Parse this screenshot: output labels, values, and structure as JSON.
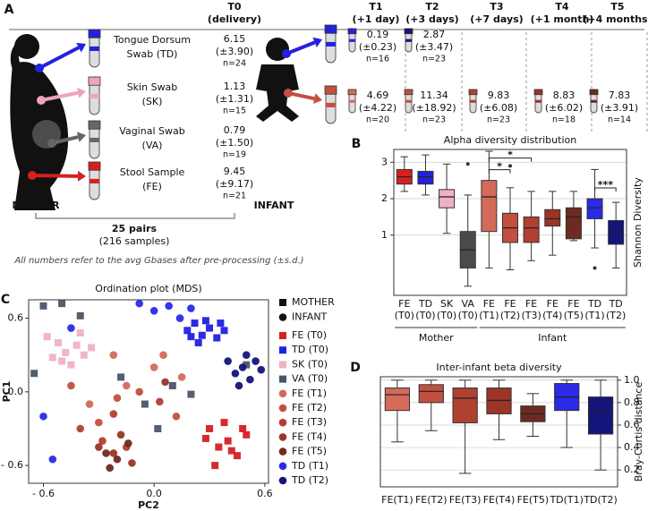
{
  "panel_a": {
    "label": "A",
    "baseline": {
      "name": "T0",
      "sub": "(delivery)"
    },
    "timepoints": [
      {
        "name": "T1",
        "sub": "(+1 day)"
      },
      {
        "name": "T2",
        "sub": "(+3 days)"
      },
      {
        "name": "T3",
        "sub": "(+7 days)"
      },
      {
        "name": "T4",
        "sub": "(+1 month)"
      },
      {
        "name": "T5",
        "sub": "(+4 months)"
      }
    ],
    "mother_samples": [
      {
        "lines": [
          "Tongue Dorsum",
          "Swab (TD)"
        ],
        "color": "#2222dd",
        "value": 6.15,
        "sd": "(±3.90)",
        "n": "n=24"
      },
      {
        "lines": [
          "Skin Swab",
          "(SK)"
        ],
        "color": "#eda4bc",
        "value": 1.13,
        "sd": "(±1.31)",
        "n": "n=15"
      },
      {
        "lines": [
          "Vaginal Swab",
          "(VA)"
        ],
        "color": "#666666",
        "value": 0.79,
        "sd": "(±1.50)",
        "n": "n=19"
      },
      {
        "lines": [
          "Stool Sample",
          "(FE)"
        ],
        "color": "#d42020",
        "value": 9.45,
        "sd": "(±9.17)",
        "n": "n=21"
      }
    ],
    "infant_samples": [
      {
        "color": "#2222dd",
        "measurements": [
          {
            "color": "#2222dd",
            "value": 0.19,
            "sd": "(±0.23)",
            "n": "n=16"
          },
          {
            "color": "#14147a",
            "value": 2.87,
            "sd": "(±3.47)",
            "n": "n=23"
          }
        ]
      },
      {
        "color": "#c25040",
        "measurements": [
          {
            "color": "#d46a5a",
            "value": 4.69,
            "sd": "(±4.22)",
            "n": "n=20"
          },
          {
            "color": "#c25040",
            "value": 11.34,
            "sd": "(±18.92)",
            "n": "n=23"
          },
          {
            "color": "#b04030",
            "value": 9.83,
            "sd": "(±6.08)",
            "n": "n=23"
          },
          {
            "color": "#9a3528",
            "value": 8.83,
            "sd": "(±6.02)",
            "n": "n=18"
          },
          {
            "color": "#6e2a22",
            "value": 7.83,
            "sd": "(±3.91)",
            "n": "n=14"
          }
        ]
      }
    ],
    "mother": "MOTHER",
    "infant": "INFANT",
    "pairs": "25 pairs",
    "samples": "(216 samples)",
    "note": "All numbers refer to the avg Gbases after pre-processing (±s.d.)"
  },
  "chart_data": [
    {
      "type": "box",
      "panel": "B",
      "title": "Alpha diversity distribution",
      "ylabel": "Shannon Diversity",
      "categories": [
        [
          "FE",
          "(T0)"
        ],
        [
          "TD",
          "(T0)"
        ],
        [
          "SK",
          "(T0)"
        ],
        [
          "VA",
          "(T0)"
        ],
        [
          "FE",
          "(T1)"
        ],
        [
          "FE",
          "(T2)"
        ],
        [
          "FE",
          "(T3)"
        ],
        [
          "FE",
          "(T4)"
        ],
        [
          "FE",
          "(T5)"
        ],
        [
          "TD",
          "(T1)"
        ],
        [
          "TD",
          "(T2)"
        ]
      ],
      "colors": [
        "#d42020",
        "#2222dd",
        "#f0b0c8",
        "#4a4a4a",
        "#d46a5a",
        "#c25040",
        "#b04030",
        "#9a3528",
        "#6e2a22",
        "#2a2ae8",
        "#14147a"
      ],
      "boxes": [
        {
          "whislo": 2.2,
          "q1": 2.4,
          "med": 2.6,
          "q3": 2.8,
          "whishi": 3.15,
          "fliers": []
        },
        {
          "whislo": 2.1,
          "q1": 2.4,
          "med": 2.6,
          "q3": 2.75,
          "whishi": 3.2,
          "fliers": []
        },
        {
          "whislo": 1.05,
          "q1": 1.75,
          "med": 2.05,
          "q3": 2.25,
          "whishi": 2.95,
          "fliers": []
        },
        {
          "whislo": -0.4,
          "q1": 0.1,
          "med": 0.6,
          "q3": 1.1,
          "whishi": 2.1,
          "fliers": [
            2.95
          ]
        },
        {
          "whislo": 0.1,
          "q1": 1.1,
          "med": 2.05,
          "q3": 2.5,
          "whishi": 3.3,
          "fliers": []
        },
        {
          "whislo": 0.05,
          "q1": 0.8,
          "med": 1.2,
          "q3": 1.6,
          "whishi": 2.3,
          "fliers": [
            2.9
          ]
        },
        {
          "whislo": 0.3,
          "q1": 0.8,
          "med": 1.2,
          "q3": 1.5,
          "whishi": 2.2,
          "fliers": []
        },
        {
          "whislo": 0.45,
          "q1": 1.25,
          "med": 1.45,
          "q3": 1.7,
          "whishi": 2.2,
          "fliers": []
        },
        {
          "whislo": 0.85,
          "q1": 0.9,
          "med": 1.5,
          "q3": 1.75,
          "whishi": 2.2,
          "fliers": []
        },
        {
          "whislo": 0.65,
          "q1": 1.45,
          "med": 1.75,
          "q3": 2.0,
          "whishi": 2.8,
          "fliers": [
            0.1
          ]
        },
        {
          "whislo": 0.1,
          "q1": 0.75,
          "med": 1.05,
          "q3": 1.4,
          "whishi": 1.9,
          "fliers": []
        }
      ],
      "ylim": [
        -0.65,
        3.35
      ],
      "yticks": [
        1,
        2,
        3
      ],
      "grid": true,
      "yaxis_side": "left",
      "significance": [
        {
          "label": "*",
          "between": [
            4,
            5
          ]
        },
        {
          "label": "*",
          "between": [
            4,
            6
          ]
        },
        {
          "label": "***",
          "between": [
            9,
            10
          ]
        }
      ],
      "groups": [
        {
          "label": "Mother",
          "span": [
            0,
            3
          ]
        },
        {
          "label": "Infant",
          "span": [
            4,
            10
          ]
        }
      ]
    },
    {
      "type": "scatter",
      "panel": "C",
      "title": "Ordination plot (MDS)",
      "xlabel": "PC2",
      "ylabel": "PC1",
      "xlim": [
        -0.68,
        0.62
      ],
      "ylim": [
        -0.745,
        0.75
      ],
      "xticks": [
        {
          "value": -0.6,
          "label": "- 0.6"
        },
        {
          "value": 0,
          "label": "0.0"
        },
        0.6
      ],
      "yticks": [
        0.6,
        {
          "value": 0,
          "label": "0.0"
        },
        {
          "value": -0.6,
          "label": "- 0.6"
        }
      ],
      "marker_legend": [
        {
          "label": "MOTHER",
          "marker": "square"
        },
        {
          "label": "INFANT",
          "marker": "circle"
        }
      ],
      "series": [
        {
          "name": "FE (T0)",
          "color": "#d42020",
          "marker": "square",
          "x": [
            0.3,
            0.35,
            0.4,
            0.45,
            0.5,
            0.38,
            0.42,
            0.33,
            0.48,
            0.28
          ],
          "y": [
            -0.3,
            -0.45,
            -0.4,
            -0.52,
            -0.35,
            -0.25,
            -0.48,
            -0.6,
            -0.3,
            -0.38
          ]
        },
        {
          "name": "TD (T0)",
          "color": "#2020e0",
          "marker": "square",
          "x": [
            0.18,
            0.22,
            0.26,
            0.3,
            0.34,
            0.38,
            0.24,
            0.28,
            0.36,
            0.2
          ],
          "y": [
            0.5,
            0.56,
            0.46,
            0.52,
            0.44,
            0.5,
            0.4,
            0.58,
            0.56,
            0.45
          ]
        },
        {
          "name": "SK (T0)",
          "color": "#f0b0c8",
          "marker": "square",
          "x": [
            -0.58,
            -0.52,
            -0.48,
            -0.42,
            -0.38,
            -0.34,
            -0.5,
            -0.4,
            -0.55,
            -0.45
          ],
          "y": [
            0.45,
            0.4,
            0.32,
            0.38,
            0.3,
            0.36,
            0.25,
            0.48,
            0.28,
            0.22
          ]
        },
        {
          "name": "VA (T0)",
          "color": "#4a5566",
          "marker": "square",
          "x": [
            -0.6,
            -0.65,
            -0.5,
            -0.05,
            0.1,
            -0.18,
            0.2,
            0.02,
            -0.4,
            0.5
          ],
          "y": [
            0.7,
            0.15,
            0.72,
            -0.1,
            0.05,
            0.12,
            -0.02,
            -0.3,
            0.62,
            0.22
          ]
        },
        {
          "name": "FE (T1)",
          "color": "#d46a5a",
          "marker": "circle",
          "x": [
            -0.15,
            0.05,
            -0.35,
            0.0,
            -0.22,
            0.15
          ],
          "y": [
            0.05,
            0.3,
            -0.1,
            0.2,
            0.3,
            0.12
          ]
        },
        {
          "name": "FE (T2)",
          "color": "#c25040",
          "marker": "circle",
          "x": [
            -0.3,
            -0.2,
            -0.08,
            -0.45,
            0.12
          ],
          "y": [
            -0.25,
            -0.05,
            0.0,
            0.05,
            -0.2
          ]
        },
        {
          "name": "FE (T3)",
          "color": "#b04030",
          "marker": "circle",
          "x": [
            -0.28,
            -0.15,
            -0.22,
            0.03,
            -0.4
          ],
          "y": [
            -0.4,
            -0.45,
            -0.18,
            -0.08,
            -0.3
          ]
        },
        {
          "name": "FE (T4)",
          "color": "#9a3528",
          "marker": "circle",
          "x": [
            -0.22,
            -0.12,
            -0.18,
            -0.3,
            0.06
          ],
          "y": [
            -0.5,
            -0.58,
            -0.35,
            -0.45,
            0.08
          ]
        },
        {
          "name": "FE (T5)",
          "color": "#6e2a22",
          "marker": "circle",
          "x": [
            -0.2,
            -0.26,
            -0.14,
            -0.24
          ],
          "y": [
            -0.55,
            -0.5,
            -0.42,
            -0.62
          ]
        },
        {
          "name": "TD (T1)",
          "color": "#2a2ae8",
          "marker": "circle",
          "x": [
            -0.08,
            0.0,
            0.08,
            0.14,
            -0.6,
            0.2,
            -0.45,
            -0.55
          ],
          "y": [
            0.72,
            0.66,
            0.7,
            0.6,
            -0.2,
            0.68,
            0.52,
            -0.55
          ]
        },
        {
          "name": "TD (T2)",
          "color": "#14147a",
          "marker": "circle",
          "x": [
            0.4,
            0.44,
            0.48,
            0.52,
            0.55,
            0.46,
            0.58,
            0.5
          ],
          "y": [
            0.25,
            0.15,
            0.2,
            0.1,
            0.25,
            0.05,
            0.18,
            0.3
          ]
        }
      ]
    },
    {
      "type": "box",
      "panel": "D",
      "title": "Inter-infant beta diversity",
      "ylabel": "Bray-Curtis distance",
      "categories": [
        "FE(T1)",
        "FE(T2)",
        "FE(T3)",
        "FE(T4)",
        "FE(T5)",
        "TD(T1)",
        "TD(T2)"
      ],
      "colors": [
        "#d46a5a",
        "#c25040",
        "#b04030",
        "#9a3528",
        "#6e2a22",
        "#2a2ae8",
        "#14147a"
      ],
      "boxes": [
        {
          "whislo": 0.45,
          "q1": 0.73,
          "med": 0.87,
          "q3": 0.93,
          "whishi": 1.0,
          "fliers": []
        },
        {
          "whislo": 0.55,
          "q1": 0.8,
          "med": 0.9,
          "q3": 0.96,
          "whishi": 1.0,
          "fliers": []
        },
        {
          "whislo": 0.17,
          "q1": 0.62,
          "med": 0.84,
          "q3": 0.93,
          "whishi": 1.0,
          "fliers": []
        },
        {
          "whislo": 0.47,
          "q1": 0.7,
          "med": 0.82,
          "q3": 0.93,
          "whishi": 1.0,
          "fliers": []
        },
        {
          "whislo": 0.5,
          "q1": 0.63,
          "med": 0.7,
          "q3": 0.77,
          "whishi": 0.88,
          "fliers": []
        },
        {
          "whislo": 0.4,
          "q1": 0.73,
          "med": 0.85,
          "q3": 0.97,
          "whishi": 1.0,
          "fliers": []
        },
        {
          "whislo": 0.2,
          "q1": 0.52,
          "med": 0.72,
          "q3": 0.85,
          "whishi": 1.0,
          "fliers": []
        }
      ],
      "ylim": [
        0.05,
        1.03
      ],
      "yticks": [
        0.2,
        0.4,
        0.6,
        0.8,
        {
          "value": 1,
          "label": "1.0"
        }
      ],
      "grid": true,
      "yaxis_side": "right"
    }
  ]
}
